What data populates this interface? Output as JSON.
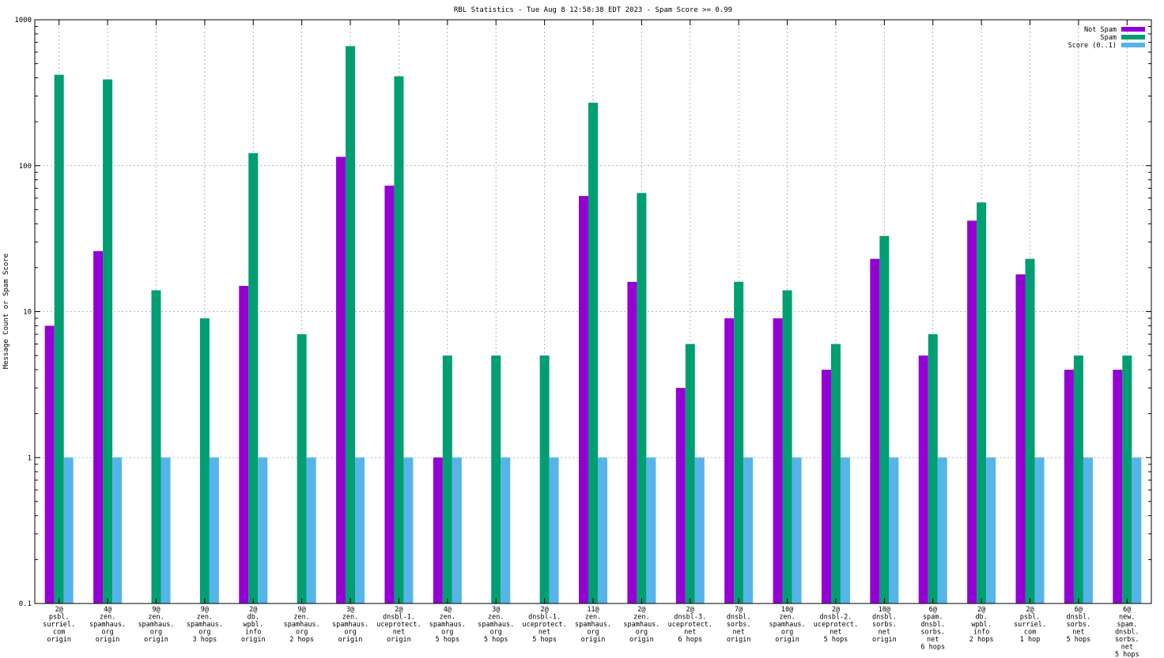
{
  "chart_data": {
    "type": "bar",
    "title": "RBL Statistics - Tue Aug  8 12:58:38 EDT 2023 - Spam Score >= 0.99",
    "xlabel": "",
    "ylabel": "Message Count or Spam Score",
    "yscale": "log",
    "ylim": [
      0.1,
      1000
    ],
    "yticks": [
      "0.1",
      "1",
      "10",
      "100",
      "1000"
    ],
    "grid": true,
    "legend_position": "top-right",
    "categories": [
      [
        "2@",
        "psbl.",
        "surriel.",
        "com",
        "origin"
      ],
      [
        "4@",
        "zen.",
        "spamhaus.",
        "org",
        "origin"
      ],
      [
        "9@",
        "zen.",
        "spamhaus.",
        "org",
        "origin"
      ],
      [
        "9@",
        "zen.",
        "spamhaus.",
        "org",
        "3 hops"
      ],
      [
        "2@",
        "db.",
        "wpbl.",
        "info",
        "origin"
      ],
      [
        "9@",
        "zen.",
        "spamhaus.",
        "org",
        "2 hops"
      ],
      [
        "3@",
        "zen.",
        "spamhaus.",
        "org",
        "origin"
      ],
      [
        "2@",
        "dnsbl-1.",
        "uceprotect.",
        "net",
        "origin"
      ],
      [
        "4@",
        "zen.",
        "spamhaus.",
        "org",
        "5 hops"
      ],
      [
        "3@",
        "zen.",
        "spamhaus.",
        "org",
        "5 hops"
      ],
      [
        "2@",
        "dnsbl-1.",
        "uceprotect.",
        "net",
        "5 hops"
      ],
      [
        "11@",
        "zen.",
        "spamhaus.",
        "org",
        "origin"
      ],
      [
        "2@",
        "zen.",
        "spamhaus.",
        "org",
        "origin"
      ],
      [
        "2@",
        "dnsbl-3.",
        "uceprotect.",
        "net",
        "6 hops"
      ],
      [
        "7@",
        "dnsbl.",
        "sorbs.",
        "net",
        "origin"
      ],
      [
        "10@",
        "zen.",
        "spamhaus.",
        "org",
        "origin"
      ],
      [
        "2@",
        "dnsbl-2.",
        "uceprotect.",
        "net",
        "5 hops"
      ],
      [
        "10@",
        "dnsbl.",
        "sorbs.",
        "net",
        "origin"
      ],
      [
        "6@",
        "spam.",
        "dnsbl.",
        "sorbs.",
        "net",
        "6 hops"
      ],
      [
        "2@",
        "db.",
        "wpbl.",
        "info",
        "2 hops"
      ],
      [
        "2@",
        "psbl.",
        "surriel.",
        "com",
        "1 hop"
      ],
      [
        "6@",
        "dnsbl.",
        "sorbs.",
        "net",
        "5 hops"
      ],
      [
        "6@",
        "new.",
        "spam.",
        "dnsbl.",
        "sorbs.",
        "net",
        "5 hops"
      ]
    ],
    "series": [
      {
        "name": "Not Spam",
        "color": "#9400d3",
        "values": [
          8,
          26,
          null,
          null,
          15,
          null,
          115,
          73,
          1,
          null,
          null,
          62,
          16,
          3,
          9,
          9,
          4,
          23,
          5,
          42,
          18,
          4,
          4
        ]
      },
      {
        "name": "Spam",
        "color": "#009e73",
        "values": [
          420,
          390,
          14,
          9,
          122,
          7,
          660,
          410,
          5,
          5,
          5,
          270,
          65,
          6,
          16,
          14,
          6,
          33,
          7,
          56,
          23,
          5,
          5
        ]
      },
      {
        "name": "Score (0..1)",
        "color": "#56b4e9",
        "values": [
          1,
          1,
          1,
          1,
          1,
          1,
          1,
          1,
          1,
          1,
          1,
          1,
          1,
          1,
          1,
          1,
          1,
          1,
          1,
          1,
          1,
          1,
          1
        ]
      }
    ]
  }
}
